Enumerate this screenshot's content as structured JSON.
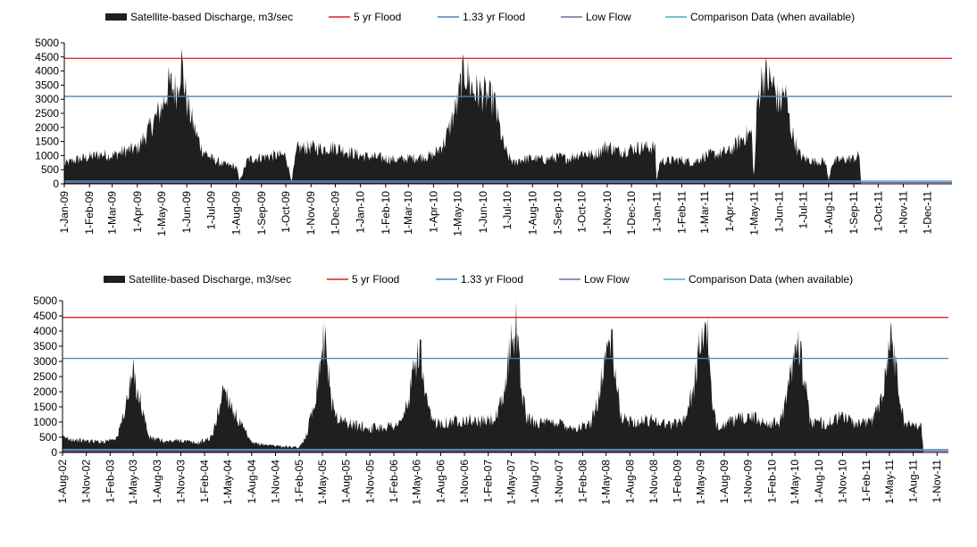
{
  "legend": [
    {
      "label": "Satellite-based Discharge, m3/sec",
      "color": "#1f1f1f",
      "kind": "area"
    },
    {
      "label": "5 yr Flood",
      "color": "#e02020",
      "kind": "line"
    },
    {
      "label": "1.33 yr Flood",
      "color": "#4f81bd",
      "kind": "line"
    },
    {
      "label": "Low Flow",
      "color": "#8064a2",
      "kind": "line"
    },
    {
      "label": "Comparison Data (when available)",
      "color": "#4bacc6",
      "kind": "line"
    }
  ],
  "chart_data": [
    {
      "type": "area",
      "x_start": "1-Jan-09",
      "x_end": "31-Dec-11",
      "x_tick_labels": [
        "1-Jan-09",
        "1-Feb-09",
        "1-Mar-09",
        "1-Apr-09",
        "1-May-09",
        "1-Jun-09",
        "1-Jul-09",
        "1-Aug-09",
        "1-Sep-09",
        "1-Oct-09",
        "1-Nov-09",
        "1-Dec-09",
        "1-Jan-10",
        "1-Feb-10",
        "1-Mar-10",
        "1-Apr-10",
        "1-May-10",
        "1-Jun-10",
        "1-Jul-10",
        "1-Aug-10",
        "1-Sep-10",
        "1-Oct-10",
        "1-Nov-10",
        "1-Dec-10",
        "1-Jan-11",
        "1-Feb-11",
        "1-Mar-11",
        "1-Apr-11",
        "1-May-11",
        "1-Jun-11",
        "1-Jul-11",
        "1-Aug-11",
        "1-Sep-11",
        "1-Oct-11",
        "1-Nov-11",
        "1-Dec-11"
      ],
      "y_ticks": [
        0,
        500,
        1000,
        1500,
        2000,
        2500,
        3000,
        3500,
        4000,
        4500,
        5000
      ],
      "ylim": [
        0,
        5000
      ],
      "legend_position": "top",
      "thresholds": {
        "five_yr_flood": 4450,
        "one33_yr_flood": 3100,
        "low_flow": 50,
        "comparison": 100
      },
      "series": [
        {
          "name": "Satellite-based Discharge, m3/sec",
          "points": [
            [
              "1-Jan-09",
              700
            ],
            [
              "15-Jan-09",
              850
            ],
            [
              "1-Feb-09",
              950
            ],
            [
              "15-Feb-09",
              1050
            ],
            [
              "1-Mar-09",
              1000
            ],
            [
              "15-Mar-09",
              1150
            ],
            [
              "1-Apr-09",
              1250
            ],
            [
              "15-Apr-09",
              1900
            ],
            [
              "1-May-09",
              2700
            ],
            [
              "10-May-09",
              3500
            ],
            [
              "20-May-09",
              3300
            ],
            [
              "25-May-09",
              4400
            ],
            [
              "1-Jun-09",
              2900
            ],
            [
              "10-Jun-09",
              2000
            ],
            [
              "20-Jun-09",
              1200
            ],
            [
              "1-Jul-09",
              900
            ],
            [
              "15-Jul-09",
              700
            ],
            [
              "1-Aug-09",
              600
            ],
            [
              "5-Aug-09",
              100
            ],
            [
              "15-Aug-09",
              850
            ],
            [
              "1-Sep-09",
              950
            ],
            [
              "15-Sep-09",
              1000
            ],
            [
              "1-Oct-09",
              1000
            ],
            [
              "8-Oct-09",
              100
            ],
            [
              "15-Oct-09",
              1250
            ],
            [
              "1-Nov-09",
              1300
            ],
            [
              "15-Nov-09",
              1250
            ],
            [
              "1-Dec-09",
              1300
            ],
            [
              "15-Dec-09",
              1150
            ],
            [
              "1-Jan-10",
              1000
            ],
            [
              "15-Jan-10",
              950
            ],
            [
              "1-Feb-10",
              900
            ],
            [
              "15-Feb-10",
              850
            ],
            [
              "1-Mar-10",
              900
            ],
            [
              "15-Mar-10",
              950
            ],
            [
              "1-Apr-10",
              1000
            ],
            [
              "15-Apr-10",
              1500
            ],
            [
              "1-May-10",
              2900
            ],
            [
              "5-May-10",
              3600
            ],
            [
              "10-May-10",
              4000
            ],
            [
              "20-May-10",
              3300
            ],
            [
              "1-Jun-10",
              3200
            ],
            [
              "15-Jun-10",
              2900
            ],
            [
              "25-Jun-10",
              1500
            ],
            [
              "1-Jul-10",
              1000
            ],
            [
              "10-Jul-10",
              700
            ],
            [
              "15-Jul-10",
              850
            ],
            [
              "1-Aug-10",
              900
            ],
            [
              "15-Aug-10",
              850
            ],
            [
              "1-Sep-10",
              950
            ],
            [
              "15-Sep-10",
              900
            ],
            [
              "1-Oct-10",
              1100
            ],
            [
              "15-Oct-10",
              1000
            ],
            [
              "1-Nov-10",
              1350
            ],
            [
              "15-Nov-10",
              1150
            ],
            [
              "1-Dec-10",
              1250
            ],
            [
              "15-Dec-10",
              1300
            ],
            [
              "30-Dec-10",
              1300
            ],
            [
              "1-Jan-11",
              100
            ],
            [
              "5-Jan-11",
              800
            ],
            [
              "1-Feb-11",
              850
            ],
            [
              "15-Feb-11",
              750
            ],
            [
              "1-Mar-11",
              1000
            ],
            [
              "15-Mar-11",
              1050
            ],
            [
              "1-Apr-11",
              1150
            ],
            [
              "20-Apr-11",
              1700
            ],
            [
              "28-Apr-11",
              1800
            ],
            [
              "1-May-11",
              100
            ],
            [
              "5-May-11",
              2900
            ],
            [
              "12-May-11",
              3900
            ],
            [
              "25-May-11",
              3500
            ],
            [
              "1-Jun-11",
              2800
            ],
            [
              "8-Jun-11",
              3300
            ],
            [
              "15-Jun-11",
              2000
            ],
            [
              "25-Jun-11",
              1100
            ],
            [
              "1-Jul-11",
              900
            ],
            [
              "15-Jul-11",
              800
            ],
            [
              "28-Jul-11",
              800
            ],
            [
              "1-Aug-11",
              100
            ],
            [
              "5-Aug-11",
              750
            ],
            [
              "15-Aug-11",
              850
            ],
            [
              "1-Sep-11",
              900
            ],
            [
              "8-Sep-11",
              1000
            ],
            [
              "10-Sep-11",
              0
            ]
          ]
        }
      ]
    },
    {
      "type": "area",
      "x_start": "1-Aug-02",
      "x_end": "15-Dec-11",
      "x_tick_labels": [
        "1-Aug-02",
        "1-Nov-02",
        "1-Feb-03",
        "1-May-03",
        "1-Aug-03",
        "1-Nov-03",
        "1-Feb-04",
        "1-May-04",
        "1-Aug-04",
        "1-Nov-04",
        "1-Feb-05",
        "1-May-05",
        "1-Aug-05",
        "1-Nov-05",
        "1-Feb-06",
        "1-May-06",
        "1-Aug-06",
        "1-Nov-06",
        "1-Feb-07",
        "1-May-07",
        "1-Aug-07",
        "1-Nov-07",
        "1-Feb-08",
        "1-May-08",
        "1-Aug-08",
        "1-Nov-08",
        "1-Feb-09",
        "1-May-09",
        "1-Aug-09",
        "1-Nov-09",
        "1-Feb-10",
        "1-May-10",
        "1-Aug-10",
        "1-Nov-10",
        "1-Feb-11",
        "1-May-11",
        "1-Aug-11",
        "1-Nov-11"
      ],
      "y_ticks": [
        0,
        500,
        1000,
        1500,
        2000,
        2500,
        3000,
        3500,
        4000,
        4500,
        5000
      ],
      "ylim": [
        0,
        5000
      ],
      "legend_position": "top",
      "thresholds": {
        "five_yr_flood": 4450,
        "one33_yr_flood": 3100,
        "low_flow": 50,
        "comparison": 100
      },
      "series": [
        {
          "name": "Satellite-based Discharge, m3/sec",
          "points": [
            [
              "1-Aug-02",
              500
            ],
            [
              "1-Oct-02",
              400
            ],
            [
              "1-Jan-03",
              350
            ],
            [
              "1-Mar-03",
              500
            ],
            [
              "1-Apr-03",
              1500
            ],
            [
              "1-May-03",
              2600
            ],
            [
              "1-Jun-03",
              1600
            ],
            [
              "1-Jul-03",
              500
            ],
            [
              "1-Sep-03",
              350
            ],
            [
              "1-Nov-03",
              400
            ],
            [
              "1-Jan-04",
              300
            ],
            [
              "1-Mar-04",
              500
            ],
            [
              "1-Apr-04",
              1600
            ],
            [
              "15-Apr-04",
              2200
            ],
            [
              "1-Jun-04",
              1200
            ],
            [
              "1-Aug-04",
              300
            ],
            [
              "1-Oct-04",
              250
            ],
            [
              "1-Dec-04",
              200
            ],
            [
              "1-Feb-05",
              150
            ],
            [
              "1-Mar-05",
              600
            ],
            [
              "1-Apr-05",
              1700
            ],
            [
              "1-May-05",
              3500
            ],
            [
              "15-May-05",
              3800
            ],
            [
              "1-Jun-05",
              1800
            ],
            [
              "1-Jul-05",
              1100
            ],
            [
              "1-Sep-05",
              900
            ],
            [
              "1-Nov-05",
              800
            ],
            [
              "1-Jan-06",
              850
            ],
            [
              "1-Mar-06",
              950
            ],
            [
              "1-Apr-06",
              1800
            ],
            [
              "1-May-06",
              3200
            ],
            [
              "15-May-06",
              3400
            ],
            [
              "1-Jun-06",
              1800
            ],
            [
              "1-Jul-06",
              1000
            ],
            [
              "1-Sep-06",
              1000
            ],
            [
              "1-Nov-06",
              1100
            ],
            [
              "1-Jan-07",
              1000
            ],
            [
              "1-Mar-07",
              1100
            ],
            [
              "1-Apr-07",
              1800
            ],
            [
              "1-May-07",
              3800
            ],
            [
              "20-May-07",
              4200
            ],
            [
              "10-Jun-07",
              2000
            ],
            [
              "1-Jul-07",
              1100
            ],
            [
              "1-Sep-07",
              950
            ],
            [
              "1-Nov-07",
              1000
            ],
            [
              "1-Jan-08",
              800
            ],
            [
              "1-Mar-08",
              900
            ],
            [
              "1-Apr-08",
              1800
            ],
            [
              "1-May-08",
              3300
            ],
            [
              "20-May-08",
              3800
            ],
            [
              "10-Jun-08",
              2200
            ],
            [
              "1-Jul-08",
              1100
            ],
            [
              "1-Sep-08",
              1000
            ],
            [
              "1-Nov-08",
              1100
            ],
            [
              "1-Jan-09",
              900
            ],
            [
              "1-Mar-09",
              1100
            ],
            [
              "1-Apr-09",
              2000
            ],
            [
              "1-May-09",
              3600
            ],
            [
              "25-May-09",
              4300
            ],
            [
              "15-Jun-09",
              1500
            ],
            [
              "1-Jul-09",
              900
            ],
            [
              "1-Sep-09",
              1000
            ],
            [
              "1-Nov-09",
              1200
            ],
            [
              "1-Jan-10",
              1000
            ],
            [
              "1-Mar-10",
              950
            ],
            [
              "1-Apr-10",
              1800
            ],
            [
              "1-May-10",
              3600
            ],
            [
              "10-May-10",
              4000
            ],
            [
              "20-Jun-10",
              1500
            ],
            [
              "1-Jul-10",
              1000
            ],
            [
              "1-Sep-10",
              950
            ],
            [
              "1-Nov-10",
              1200
            ],
            [
              "1-Jan-11",
              900
            ],
            [
              "1-Mar-11",
              1100
            ],
            [
              "1-Apr-11",
              1900
            ],
            [
              "10-May-11",
              3900
            ],
            [
              "10-Jun-11",
              1800
            ],
            [
              "1-Jul-11",
              900
            ],
            [
              "1-Sep-11",
              950
            ],
            [
              "10-Sep-11",
              0
            ]
          ]
        }
      ]
    }
  ]
}
